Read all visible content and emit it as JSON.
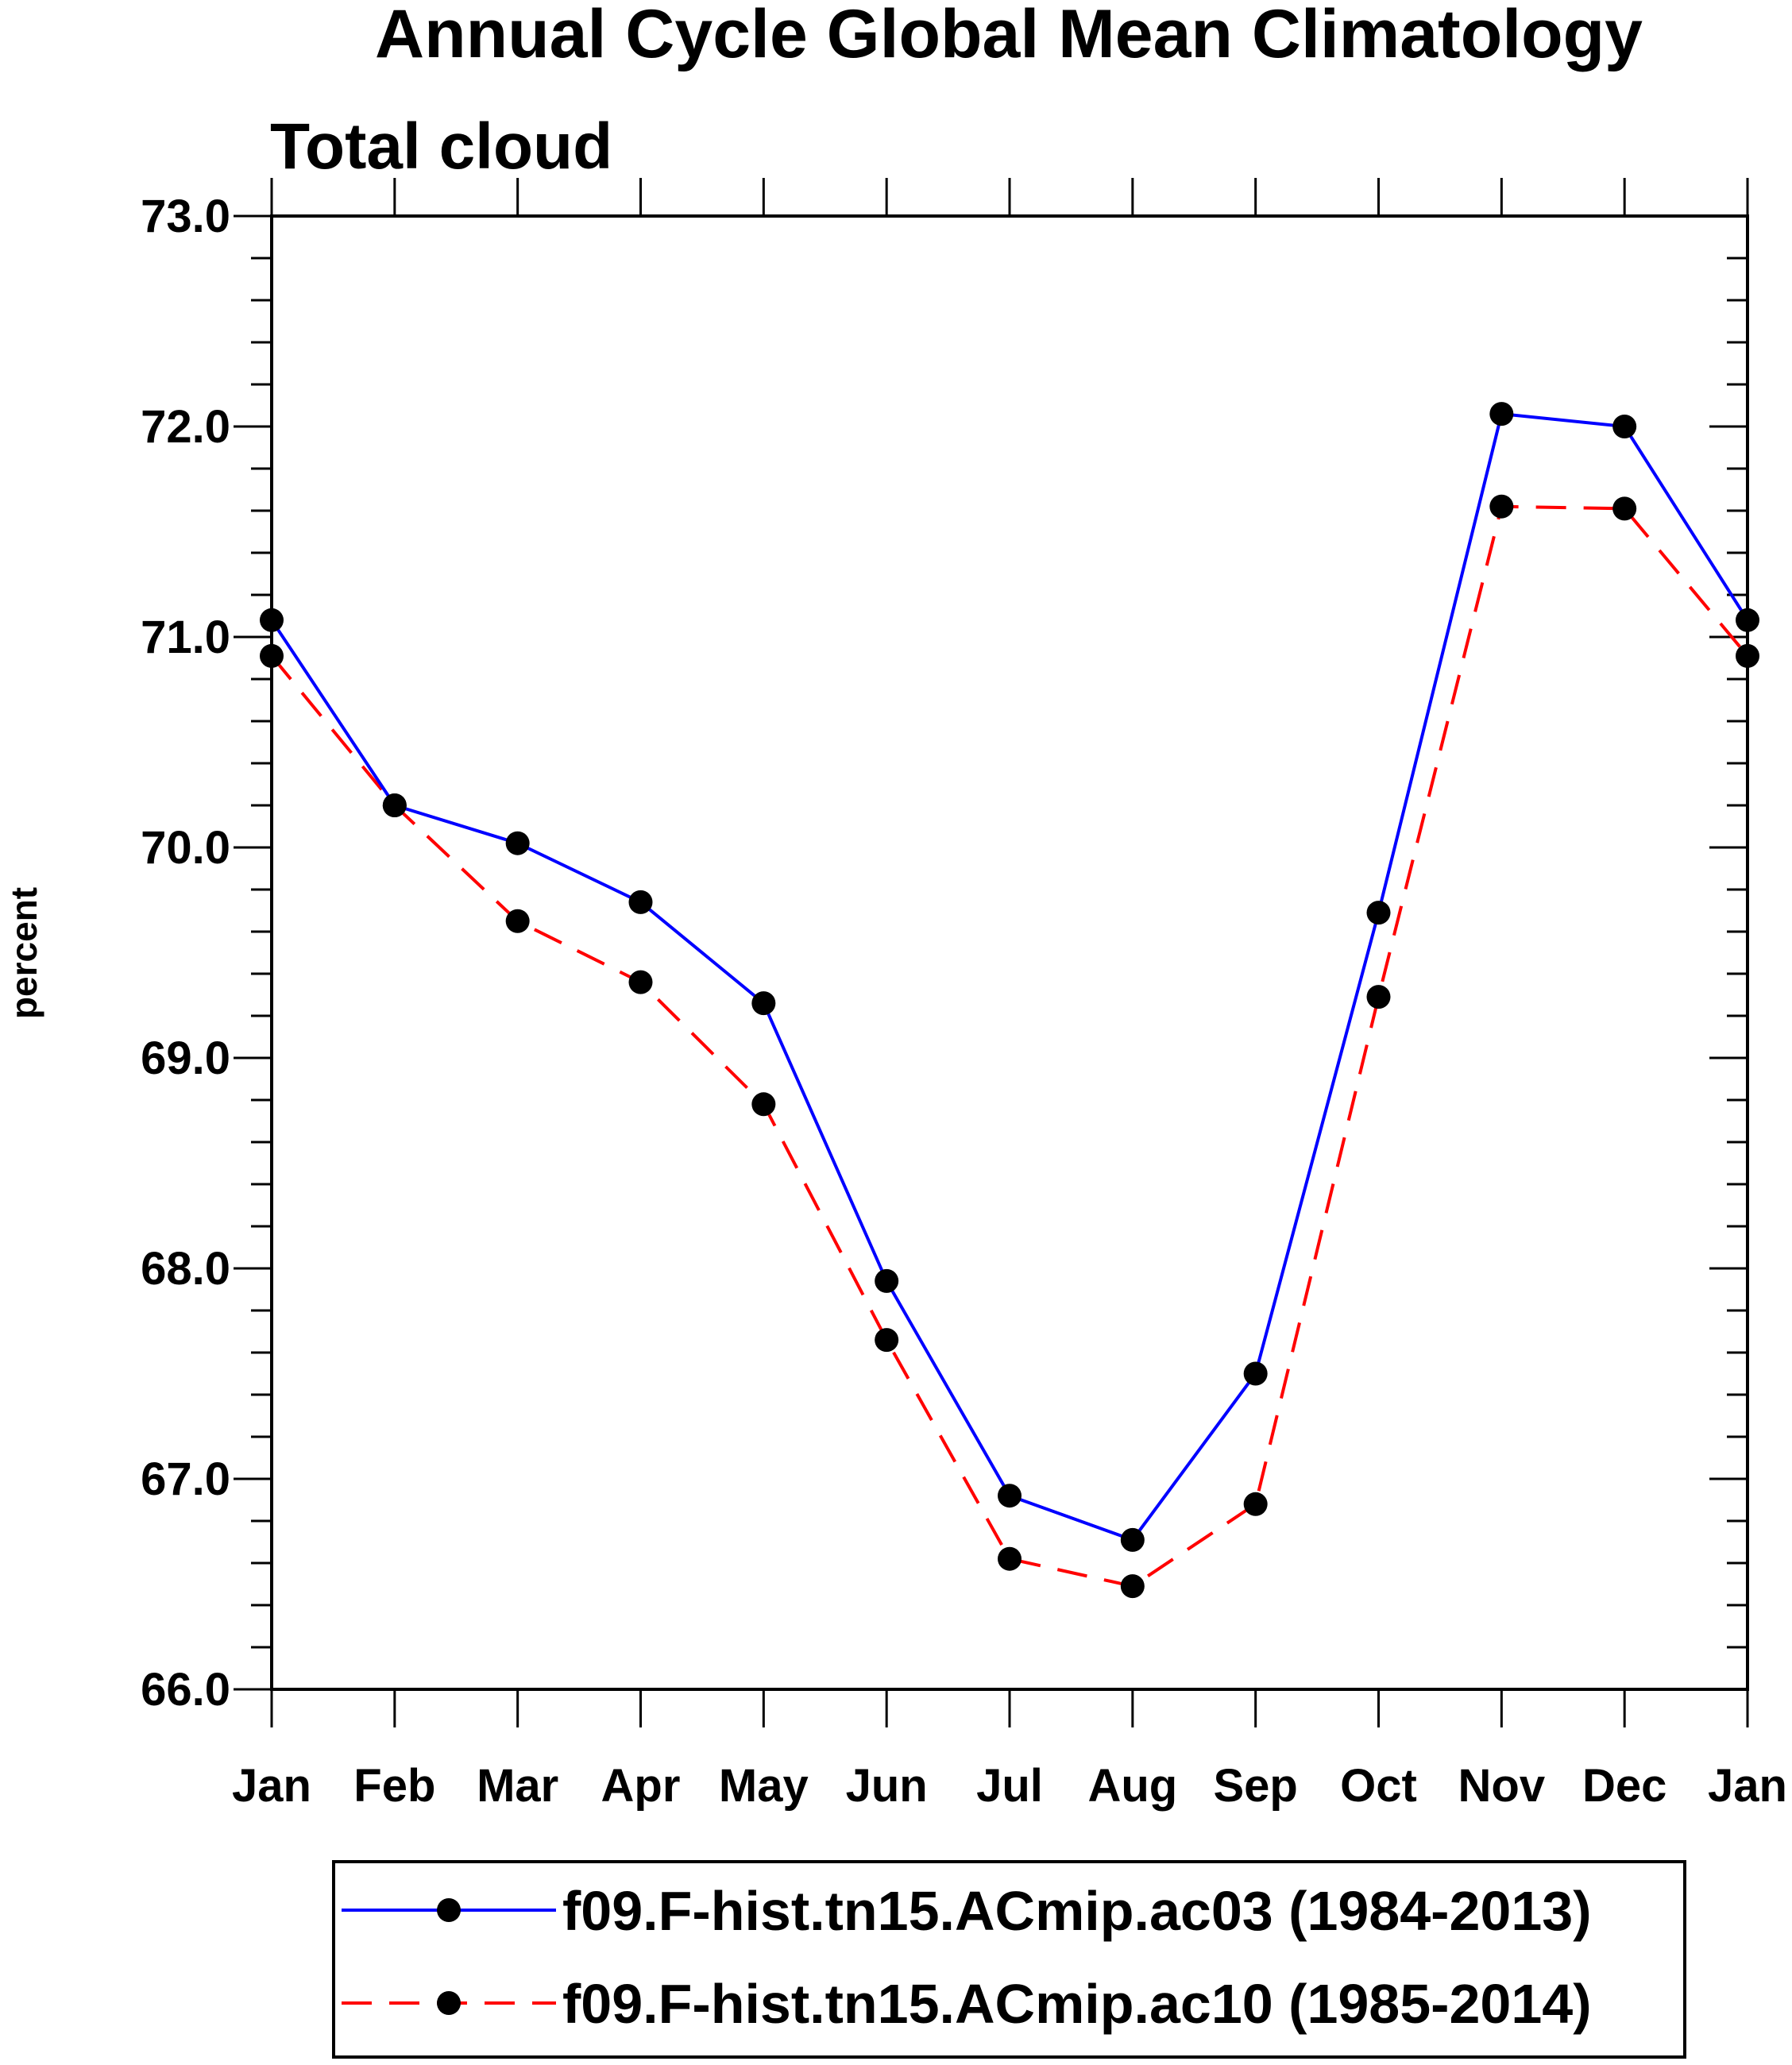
{
  "chart_data": {
    "type": "line",
    "title": "Annual Cycle Global Mean Climatology",
    "subtitle": "Total cloud",
    "ylabel": "percent",
    "xlabel": "",
    "ylim": [
      66.0,
      73.0
    ],
    "yticks": [
      "66.0",
      "67.0",
      "68.0",
      "69.0",
      "70.0",
      "71.0",
      "72.0",
      "73.0"
    ],
    "categories": [
      "Jan",
      "Feb",
      "Mar",
      "Apr",
      "May",
      "Jun",
      "Jul",
      "Aug",
      "Sep",
      "Oct",
      "Nov",
      "Dec",
      "Jan"
    ],
    "grid": false,
    "legend_position": "bottom",
    "series": [
      {
        "name": "f09.F-hist.tn15.ACmip.ac03 (1984-2013)",
        "color": "#0000ff",
        "dash": "solid",
        "values": [
          71.08,
          70.2,
          70.02,
          69.74,
          69.26,
          67.94,
          66.92,
          66.71,
          67.5,
          69.69,
          72.06,
          72.0,
          71.08
        ]
      },
      {
        "name": "f09.F-hist.tn15.ACmip.ac10 (1985-2014)",
        "color": "#ff0000",
        "dash": "dashed",
        "values": [
          70.91,
          70.2,
          69.65,
          69.36,
          68.78,
          67.66,
          66.62,
          66.49,
          66.88,
          69.29,
          71.62,
          71.61,
          70.91
        ]
      }
    ]
  }
}
